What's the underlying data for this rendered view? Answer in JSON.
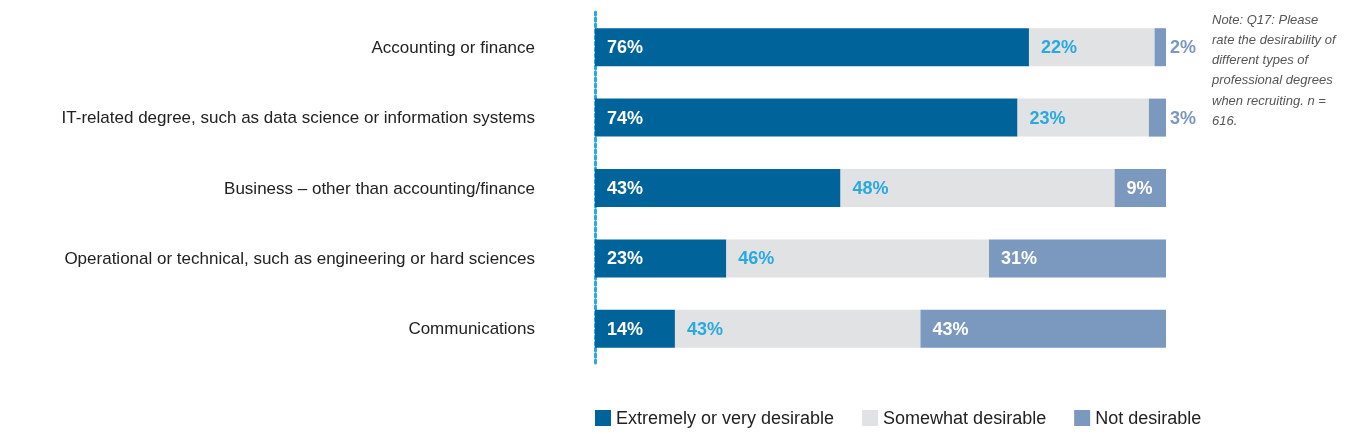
{
  "chart_data": {
    "type": "bar",
    "orientation": "horizontal",
    "stacked": true,
    "legend": "bottom",
    "categories": [
      "Accounting or finance",
      "IT-related degree, such as data science or information systems",
      "Business – other than accounting/finance",
      "Operational or technical, such as engineering or hard sciences",
      "Communications"
    ],
    "series": [
      {
        "name": "Extremely or very desirable",
        "color": "#00639a",
        "values": [
          76,
          74,
          43,
          23,
          14
        ],
        "value_labels": [
          "76%",
          "74%",
          "43%",
          "23%",
          "14%"
        ]
      },
      {
        "name": "Somewhat desirable",
        "color": "#e1e2e4",
        "values": [
          22,
          23,
          48,
          46,
          43
        ],
        "value_labels": [
          "22%",
          "23%",
          "48%",
          "46%",
          "43%"
        ]
      },
      {
        "name": "Not desirable",
        "color": "#7b98bf",
        "values": [
          2,
          3,
          9,
          31,
          43
        ],
        "value_labels": [
          "2%",
          "3%",
          "9%",
          "31%",
          "43%"
        ]
      }
    ],
    "annotations": [
      "Note: Q17: Please rate the desirability of different types of professional degrees when recruiting. n = 616."
    ]
  }
}
